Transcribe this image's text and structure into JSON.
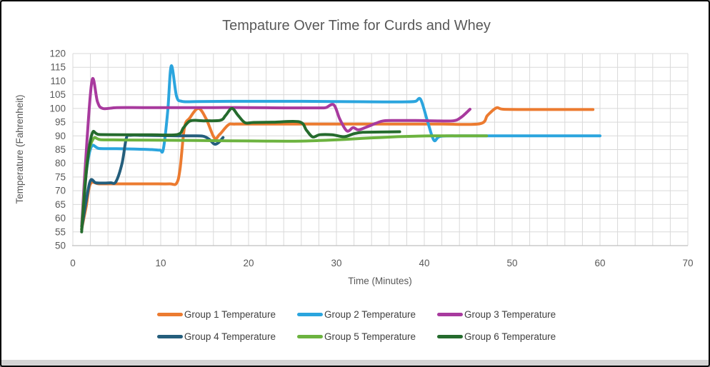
{
  "window": {
    "background_color": "#ffffff",
    "border_color": "#000000",
    "footer_bar_color": "#d4d4d4"
  },
  "chart_data": {
    "type": "line",
    "title": "Tempature Over Time for Curds and Whey",
    "xlabel": "Time (Minutes)",
    "ylabel": "Temperature (Fahrenheit)",
    "xlim": [
      0,
      70
    ],
    "ylim": [
      50,
      120
    ],
    "x_tick_step": 10,
    "x_grid_step": 2,
    "y_tick_step": 5,
    "grid": true,
    "legend_position": "bottom",
    "styles": {
      "grid_color": "#d9d9d9",
      "axis_line_color": "#bfbfbf",
      "tick_label_color": "#595959",
      "title_color": "#595959",
      "legend_text_color": "#404040",
      "line_width": 4
    },
    "series": [
      {
        "name": "Group 1 Temperature",
        "color": "#EC7B30",
        "points": [
          [
            1,
            56
          ],
          [
            1.5,
            64
          ],
          [
            2,
            72.5
          ],
          [
            3,
            72.5
          ],
          [
            5,
            72.5
          ],
          [
            7,
            72.5
          ],
          [
            9,
            72.5
          ],
          [
            11,
            72.5
          ],
          [
            11.8,
            72.7
          ],
          [
            12.2,
            78
          ],
          [
            12.7,
            93
          ],
          [
            13.3,
            96.5
          ],
          [
            14.3,
            100
          ],
          [
            15.2,
            96
          ],
          [
            16.1,
            89.3
          ],
          [
            16.7,
            90.5
          ],
          [
            17.7,
            94
          ],
          [
            18.5,
            94.3
          ],
          [
            22,
            94.3
          ],
          [
            26,
            94.3
          ],
          [
            30,
            94.3
          ],
          [
            34,
            94.3
          ],
          [
            38,
            94.3
          ],
          [
            42,
            94.3
          ],
          [
            46.3,
            94.4
          ],
          [
            47.2,
            97.5
          ],
          [
            48.2,
            100.2
          ],
          [
            49,
            99.7
          ],
          [
            52,
            99.6
          ],
          [
            56,
            99.6
          ],
          [
            59.2,
            99.6
          ]
        ]
      },
      {
        "name": "Group 2 Temperature",
        "color": "#2BA5DE",
        "points": [
          [
            1,
            57
          ],
          [
            1.5,
            76
          ],
          [
            2.1,
            86
          ],
          [
            3,
            85.4
          ],
          [
            5,
            85.3
          ],
          [
            7,
            85.2
          ],
          [
            9,
            85
          ],
          [
            9.9,
            84.8
          ],
          [
            10.3,
            85.2
          ],
          [
            10.8,
            99
          ],
          [
            11.2,
            115.5
          ],
          [
            11.8,
            104.5
          ],
          [
            12.4,
            102.6
          ],
          [
            14,
            102.5
          ],
          [
            18,
            102.6
          ],
          [
            22,
            102.6
          ],
          [
            26,
            102.6
          ],
          [
            30,
            102.5
          ],
          [
            34,
            102.4
          ],
          [
            38,
            102.4
          ],
          [
            39,
            102.6
          ],
          [
            39.6,
            103.2
          ],
          [
            40.4,
            95
          ],
          [
            41.1,
            88.4
          ],
          [
            41.8,
            89.8
          ],
          [
            44,
            90
          ],
          [
            48,
            90
          ],
          [
            52,
            90
          ],
          [
            56,
            90
          ],
          [
            60,
            90
          ]
        ]
      },
      {
        "name": "Group 3 Temperature",
        "color": "#A83A9E",
        "points": [
          [
            1,
            57
          ],
          [
            1.6,
            88
          ],
          [
            2.2,
            110.5
          ],
          [
            2.8,
            102.5
          ],
          [
            3.4,
            100
          ],
          [
            5,
            100.3
          ],
          [
            8,
            100.3
          ],
          [
            12,
            100.3
          ],
          [
            16,
            100.3
          ],
          [
            20,
            100.3
          ],
          [
            24,
            100.2
          ],
          [
            28,
            100.2
          ],
          [
            28.8,
            100.3
          ],
          [
            29.7,
            101.3
          ],
          [
            30.4,
            96
          ],
          [
            31.2,
            91.8
          ],
          [
            31.9,
            93
          ],
          [
            32.5,
            92.2
          ],
          [
            33.5,
            93.3
          ],
          [
            34.5,
            94.6
          ],
          [
            35.4,
            95.5
          ],
          [
            37,
            95.6
          ],
          [
            39,
            95.6
          ],
          [
            41,
            95.5
          ],
          [
            43.3,
            95.5
          ],
          [
            44.2,
            96.8
          ],
          [
            45.2,
            99.7
          ]
        ]
      },
      {
        "name": "Group 4 Temperature",
        "color": "#245E7C",
        "points": [
          [
            1,
            56
          ],
          [
            1.5,
            66
          ],
          [
            2,
            73.7
          ],
          [
            2.6,
            72.9
          ],
          [
            3.5,
            72.8
          ],
          [
            4.3,
            72.9
          ],
          [
            4.9,
            73.3
          ],
          [
            5.6,
            80
          ],
          [
            6.1,
            89.3
          ],
          [
            6.6,
            90.2
          ],
          [
            8,
            90.2
          ],
          [
            10,
            90.1
          ],
          [
            12,
            90
          ],
          [
            13.5,
            90
          ],
          [
            14.8,
            89.9
          ],
          [
            15.5,
            88.8
          ],
          [
            16.1,
            87
          ],
          [
            16.6,
            87.6
          ],
          [
            17.1,
            89.4
          ]
        ]
      },
      {
        "name": "Group 5 Temperature",
        "color": "#6CB33F",
        "points": [
          [
            1,
            56
          ],
          [
            1.6,
            80
          ],
          [
            2.3,
            88.8
          ],
          [
            3.2,
            88.6
          ],
          [
            6,
            88.5
          ],
          [
            10,
            88.4
          ],
          [
            14,
            88.3
          ],
          [
            18,
            88.2
          ],
          [
            22,
            88.1
          ],
          [
            26,
            88.1
          ],
          [
            29,
            88.4
          ],
          [
            31,
            88.7
          ],
          [
            33,
            89.1
          ],
          [
            35,
            89.4
          ],
          [
            37,
            89.7
          ],
          [
            39,
            89.9
          ],
          [
            41,
            90
          ],
          [
            44,
            90
          ],
          [
            47.1,
            90
          ]
        ]
      },
      {
        "name": "Group 6 Temperature",
        "color": "#256B2D",
        "points": [
          [
            1,
            55
          ],
          [
            1.6,
            79
          ],
          [
            2.2,
            90.9
          ],
          [
            3,
            90.5
          ],
          [
            6,
            90.4
          ],
          [
            9,
            90.4
          ],
          [
            11.9,
            90.5
          ],
          [
            12.6,
            93
          ],
          [
            13.4,
            95.5
          ],
          [
            15,
            95.5
          ],
          [
            16.8,
            95.7
          ],
          [
            17.4,
            97.5
          ],
          [
            18.1,
            100
          ],
          [
            18.8,
            97.5
          ],
          [
            19.6,
            94.8
          ],
          [
            20.6,
            94.9
          ],
          [
            23,
            95
          ],
          [
            25.8,
            95.1
          ],
          [
            26.6,
            92
          ],
          [
            27.3,
            89.6
          ],
          [
            28.1,
            90.4
          ],
          [
            29.5,
            90.4
          ],
          [
            30.9,
            89.7
          ],
          [
            32,
            90.8
          ],
          [
            33,
            91.3
          ],
          [
            35,
            91.4
          ],
          [
            37.2,
            91.5
          ]
        ]
      }
    ]
  }
}
